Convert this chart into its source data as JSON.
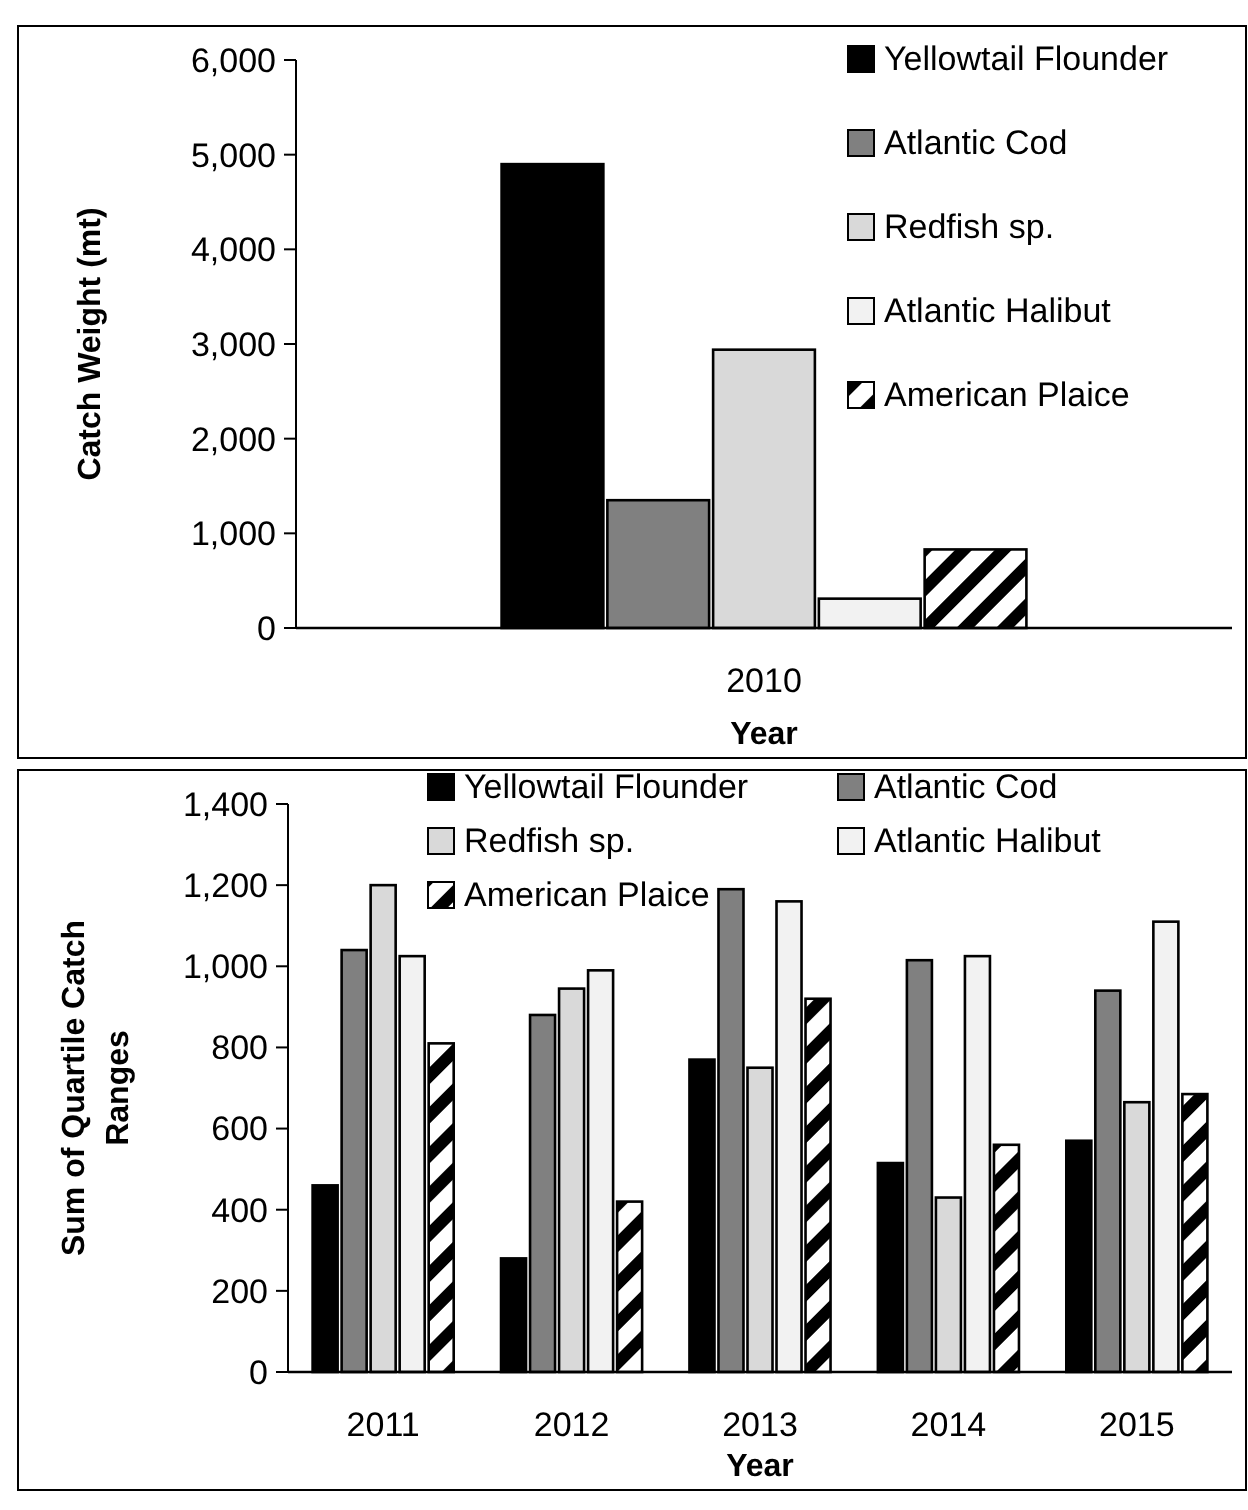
{
  "chart_data": [
    {
      "type": "bar",
      "ylabel": "Catch Weight (mt)",
      "xlabel": "Year",
      "categories": [
        "2010"
      ],
      "ylim": [
        0,
        6000
      ],
      "yticks": [
        {
          "value": 0,
          "label": "0"
        },
        {
          "value": 1000,
          "label": "1,000"
        },
        {
          "value": 2000,
          "label": "2,000"
        },
        {
          "value": 3000,
          "label": "3,000"
        },
        {
          "value": 4000,
          "label": "4,000"
        },
        {
          "value": 5000,
          "label": "5,000"
        },
        {
          "value": 6000,
          "label": "6,000"
        }
      ],
      "legend": "top right",
      "grid": false,
      "series": [
        {
          "name": "Yellowtail Flounder",
          "color": "#000000",
          "values": [
            4900
          ]
        },
        {
          "name": "Atlantic Cod",
          "color": "#808080",
          "values": [
            1350
          ]
        },
        {
          "name": "Redfish sp.",
          "color": "#d9d9d9",
          "values": [
            2940
          ]
        },
        {
          "name": "Atlantic Halibut",
          "color": "#f2f2f2",
          "values": [
            310
          ]
        },
        {
          "name": "American Plaice",
          "color": "#000000",
          "values": [
            830
          ]
        }
      ]
    },
    {
      "type": "bar",
      "ylabel": "Sum of Quartile Catch Ranges",
      "xlabel": "Year",
      "categories": [
        "2011",
        "2012",
        "2013",
        "2014",
        "2015"
      ],
      "ylim": [
        0,
        1400
      ],
      "yticks": [
        {
          "value": 0,
          "label": "0"
        },
        {
          "value": 200,
          "label": "200"
        },
        {
          "value": 400,
          "label": "400"
        },
        {
          "value": 600,
          "label": "600"
        },
        {
          "value": 800,
          "label": "800"
        },
        {
          "value": 1000,
          "label": "1,000"
        },
        {
          "value": 1200,
          "label": "1,200"
        },
        {
          "value": 1400,
          "label": "1,400"
        }
      ],
      "legend": "top",
      "grid": false,
      "series": [
        {
          "name": "Yellowtail Flounder",
          "color": "#000000",
          "values": [
            460,
            280,
            770,
            515,
            570
          ]
        },
        {
          "name": "Atlantic Cod",
          "color": "#808080",
          "values": [
            1040,
            880,
            1190,
            1015,
            940
          ]
        },
        {
          "name": "Redfish sp.",
          "color": "#d9d9d9",
          "values": [
            1200,
            945,
            750,
            430,
            665
          ]
        },
        {
          "name": "Atlantic Halibut",
          "color": "#f2f2f2",
          "values": [
            1025,
            990,
            1160,
            1025,
            1110
          ]
        },
        {
          "name": "American Plaice",
          "color": "#000000",
          "values": [
            810,
            420,
            920,
            560,
            685
          ]
        }
      ]
    }
  ]
}
